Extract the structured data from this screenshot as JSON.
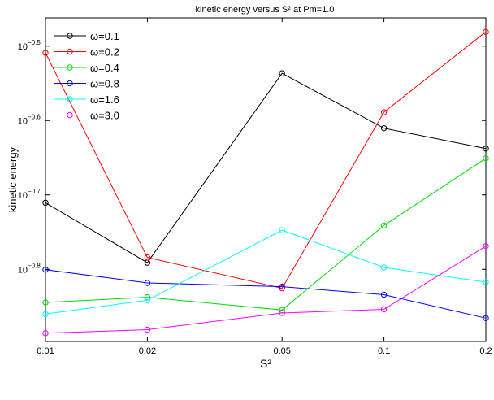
{
  "chart_data": {
    "type": "line",
    "title": "kinetic energy versus S² at Pm=1.0",
    "xlabel": "S²",
    "ylabel": "kinetic energy",
    "xscale": "log",
    "yscale": "log",
    "x": [
      0.01,
      0.02,
      0.05,
      0.1,
      0.2
    ],
    "xticks": [
      "0.01",
      "0.02",
      "0.05",
      "0.1",
      "0.2"
    ],
    "xlim": [
      0.01,
      0.2
    ],
    "ylim_log10": [
      -0.897,
      -0.462
    ],
    "yticks_log10": [
      -0.5,
      -0.6,
      -0.7,
      -0.8
    ],
    "yticks": [
      {
        "base": "10",
        "exp": "−0.5"
      },
      {
        "base": "10",
        "exp": "−0.6"
      },
      {
        "base": "10",
        "exp": "−0.7"
      },
      {
        "base": "10",
        "exp": "−0.8"
      }
    ],
    "grid": false,
    "legend_position": "top-left",
    "marker": "circle",
    "series": [
      {
        "name": "ω=0.1",
        "color": "#000000",
        "log10_values": [
          -0.7105,
          -0.7911,
          -0.5365,
          -0.6103,
          -0.6377
        ]
      },
      {
        "name": "ω=0.2",
        "color": "#ff0000",
        "log10_values": [
          -0.509,
          -0.7841,
          -0.8255,
          -0.5888,
          -0.4808
        ]
      },
      {
        "name": "ω=0.4",
        "color": "#00dd00",
        "log10_values": [
          -0.8445,
          -0.8375,
          -0.8547,
          -0.741,
          -0.6509
        ]
      },
      {
        "name": "ω=0.8",
        "color": "#0000ff",
        "log10_values": [
          -0.8005,
          -0.8183,
          -0.8233,
          -0.8341,
          -0.8656
        ]
      },
      {
        "name": "ω=1.6",
        "color": "#00ffff",
        "log10_values": [
          -0.8602,
          -0.8416,
          -0.7474,
          -0.7975,
          -0.8172
        ]
      },
      {
        "name": "ω=3.0",
        "color": "#ff00ff",
        "log10_values": [
          -0.8859,
          -0.8811,
          -0.8588,
          -0.8538,
          -0.7689
        ]
      }
    ]
  }
}
